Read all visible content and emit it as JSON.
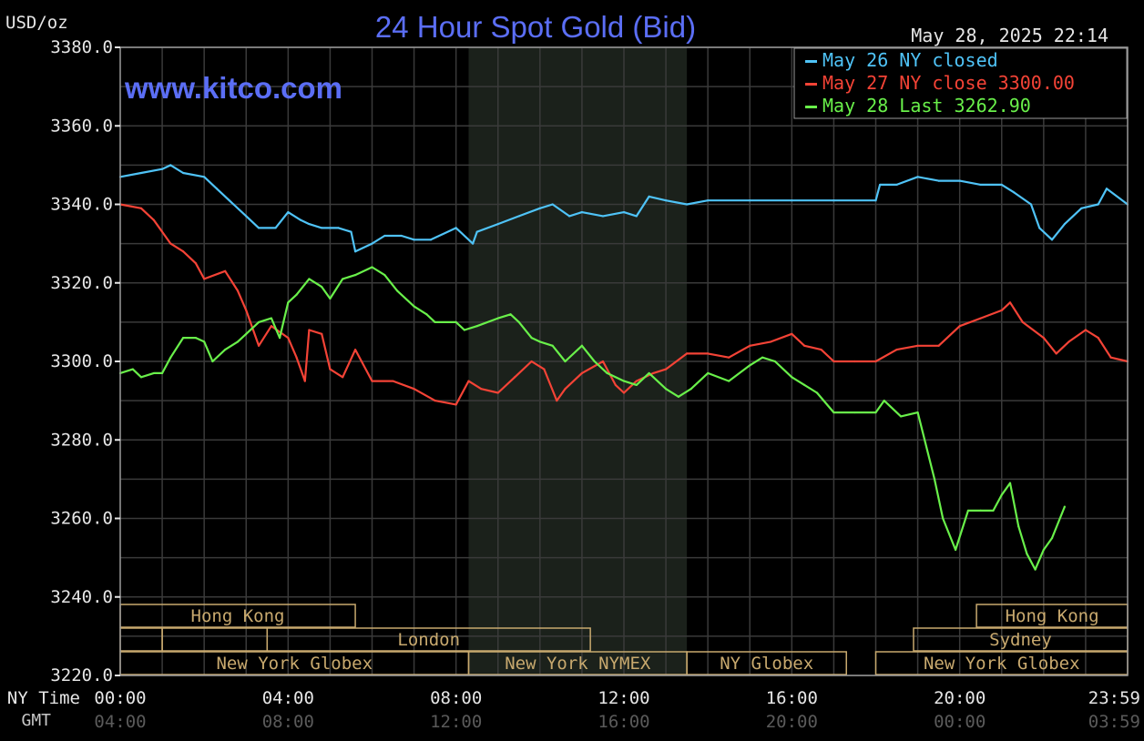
{
  "chart_data": {
    "type": "line",
    "title": "24 Hour Spot Gold (Bid)",
    "unit_label": "USD/oz",
    "timestamp": "May 28, 2025 22:14",
    "watermark": "www.kitco.com",
    "ylim": [
      3220,
      3380
    ],
    "yticks": [
      "3380.0",
      "3360.0",
      "3340.0",
      "3320.0",
      "3300.0",
      "3280.0",
      "3260.0",
      "3240.0",
      "3220.0"
    ],
    "xlim": [
      0,
      24
    ],
    "x_ticks": [
      {
        "x": 0,
        "ny": "00:00",
        "gmt": "04:00"
      },
      {
        "x": 4,
        "ny": "04:00",
        "gmt": "08:00"
      },
      {
        "x": 8,
        "ny": "08:00",
        "gmt": "12:00"
      },
      {
        "x": 12,
        "ny": "12:00",
        "gmt": "16:00"
      },
      {
        "x": 16,
        "ny": "16:00",
        "gmt": "20:00"
      },
      {
        "x": 20,
        "ny": "20:00",
        "gmt": "00:00"
      },
      {
        "x": 24,
        "ny": "23:59",
        "gmt": "03:59"
      }
    ],
    "ny_time_label": "NY Time",
    "gmt_label": "GMT",
    "grid": true,
    "legend_position": "top-right",
    "series": [
      {
        "name": "May 26 NY closed",
        "legend": "May 26 NY closed",
        "color": "#4fc3f7",
        "x": [
          0,
          0.5,
          1,
          1.2,
          1.5,
          2,
          2.3,
          2.7,
          3,
          3.3,
          3.7,
          4,
          4.3,
          4.5,
          4.8,
          5.2,
          5.5,
          5.6,
          6,
          6.3,
          6.7,
          7,
          7.4,
          8,
          8.4,
          8.5,
          9,
          9.5,
          10,
          10.3,
          10.7,
          11,
          11.5,
          12,
          12.3,
          12.6,
          13,
          13.5,
          14,
          15,
          16,
          17,
          18,
          18.1,
          18.5,
          19,
          19.5,
          20,
          20.5,
          21,
          21.3,
          21.7,
          21.9,
          22.2,
          22.5,
          22.9,
          23.3,
          23.5,
          24
        ],
        "y": [
          3347,
          3348,
          3349,
          3350,
          3348,
          3347,
          3344,
          3340,
          3337,
          3334,
          3334,
          3338,
          3336,
          3335,
          3334,
          3334,
          3333,
          3328,
          3330,
          3332,
          3332,
          3331,
          3331,
          3334,
          3330,
          3333,
          3335,
          3337,
          3339,
          3340,
          3337,
          3338,
          3337,
          3338,
          3337,
          3342,
          3341,
          3340,
          3341,
          3341,
          3341,
          3341,
          3341,
          3345,
          3345,
          3347,
          3346,
          3346,
          3345,
          3345,
          3343,
          3340,
          3334,
          3331,
          3335,
          3339,
          3340,
          3344,
          3340
        ]
      },
      {
        "name": "May 27 NY close 3300.00",
        "legend": "May 27 NY close 3300.00",
        "color": "#f44336",
        "x": [
          0,
          0.5,
          0.8,
          1.2,
          1.5,
          1.8,
          2,
          2.5,
          2.8,
          3,
          3.3,
          3.6,
          4,
          4.2,
          4.4,
          4.5,
          4.8,
          5,
          5.3,
          5.6,
          6,
          6.5,
          7,
          7.5,
          8,
          8.3,
          8.6,
          9,
          9.4,
          9.8,
          10.1,
          10.4,
          10.6,
          11,
          11.5,
          11.8,
          12,
          12.3,
          12.7,
          13,
          13.5,
          14,
          14.5,
          15,
          15.5,
          16,
          16.3,
          16.7,
          17,
          17.5,
          18,
          18.5,
          19,
          19.5,
          20,
          20.5,
          21,
          21.2,
          21.5,
          22,
          22.3,
          22.6,
          23,
          23.3,
          23.6,
          24
        ],
        "y": [
          3340,
          3339,
          3336,
          3330,
          3328,
          3325,
          3321,
          3323,
          3318,
          3313,
          3304,
          3309,
          3306,
          3301,
          3295,
          3308,
          3307,
          3298,
          3296,
          3303,
          3295,
          3295,
          3293,
          3290,
          3289,
          3295,
          3293,
          3292,
          3296,
          3300,
          3298,
          3290,
          3293,
          3297,
          3300,
          3294,
          3292,
          3295,
          3297,
          3298,
          3302,
          3302,
          3301,
          3304,
          3305,
          3307,
          3304,
          3303,
          3300,
          3300,
          3300,
          3303,
          3304,
          3304,
          3309,
          3311,
          3313,
          3315,
          3310,
          3306,
          3302,
          3305,
          3308,
          3306,
          3301,
          3300
        ]
      },
      {
        "name": "May 28 Last 3262.90",
        "legend": "May 28 Last 3262.90",
        "color": "#69f04a",
        "x": [
          0,
          0.3,
          0.5,
          0.8,
          1,
          1.2,
          1.5,
          1.8,
          2,
          2.2,
          2.5,
          2.8,
          3,
          3.3,
          3.6,
          3.8,
          4,
          4.2,
          4.5,
          4.8,
          5,
          5.3,
          5.6,
          6,
          6.3,
          6.6,
          7,
          7.3,
          7.5,
          8,
          8.2,
          8.5,
          9,
          9.3,
          9.5,
          9.8,
          10,
          10.3,
          10.6,
          11,
          11.3,
          11.6,
          12,
          12.3,
          12.6,
          13,
          13.3,
          13.6,
          14,
          14.5,
          15,
          15.3,
          15.6,
          16,
          16.3,
          16.6,
          17,
          17.5,
          18,
          18.2,
          18.6,
          19,
          19.4,
          19.6,
          19.9,
          20.2,
          20.5,
          20.8,
          21,
          21.2,
          21.4,
          21.6,
          21.8,
          22,
          22.2,
          22.5
        ],
        "y": [
          3297,
          3298,
          3296,
          3297,
          3297,
          3301,
          3306,
          3306,
          3305,
          3300,
          3303,
          3305,
          3307,
          3310,
          3311,
          3306,
          3315,
          3317,
          3321,
          3319,
          3316,
          3321,
          3322,
          3324,
          3322,
          3318,
          3314,
          3312,
          3310,
          3310,
          3308,
          3309,
          3311,
          3312,
          3310,
          3306,
          3305,
          3304,
          3300,
          3304,
          3300,
          3297,
          3295,
          3294,
          3297,
          3293,
          3291,
          3293,
          3297,
          3295,
          3299,
          3301,
          3300,
          3296,
          3294,
          3292,
          3287,
          3287,
          3287,
          3290,
          3286,
          3287,
          3270,
          3260,
          3252,
          3262,
          3262,
          3262,
          3266,
          3269,
          3258,
          3251,
          3247,
          3252,
          3255,
          3263
        ]
      }
    ],
    "markets": [
      {
        "label": "Hong Kong",
        "row": 0,
        "show": true,
        "from": 0,
        "to": 5.6
      },
      {
        "label": "Hong Kong",
        "row": 0,
        "show": true,
        "from": 20.4,
        "to": 24
      },
      {
        "label": "",
        "row": 1,
        "show": false,
        "from": 0,
        "to": 1
      },
      {
        "label": "",
        "row": 1,
        "show": false,
        "from": 1,
        "to": 3.5
      },
      {
        "label": "London",
        "row": 1,
        "show": true,
        "from": 3.5,
        "to": 11.2
      },
      {
        "label": "Sydney",
        "row": 1,
        "show": true,
        "from": 18.9,
        "to": 24
      },
      {
        "label": "New York Globex",
        "row": 2,
        "show": true,
        "from": 0,
        "to": 8.3
      },
      {
        "label": "New York NYMEX",
        "row": 2,
        "show": true,
        "from": 8.3,
        "to": 13.5
      },
      {
        "label": "NY Globex",
        "row": 2,
        "show": true,
        "from": 13.5,
        "to": 17.3
      },
      {
        "label": "New York Globex",
        "row": 2,
        "show": true,
        "from": 18,
        "to": 24
      }
    ],
    "shaded_session": {
      "from": 8.3,
      "to": 13.5,
      "color": "#1b211b"
    }
  }
}
